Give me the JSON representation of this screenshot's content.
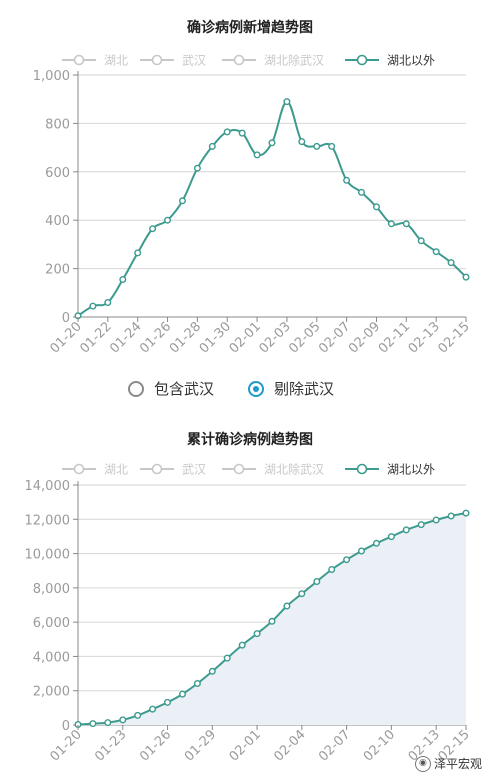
{
  "colors": {
    "active": "#3c9a8f",
    "inactive": "#c8c8c8",
    "grid": "#d6d6d6",
    "axis": "#888888",
    "tick_text": "#9b9b9b",
    "title": "#222222",
    "area": "#eaf0f5",
    "radio_accent": "#1f9ac9"
  },
  "radio": {
    "options": [
      {
        "label": "包含武汉",
        "checked": false
      },
      {
        "label": "剔除武汉",
        "checked": true
      }
    ]
  },
  "watermark": {
    "text": "泽平宏观",
    "icon": "wechat-icon"
  },
  "chart_data": [
    {
      "type": "line",
      "title": "确诊病例新增趋势图",
      "legend": [
        "湖北",
        "武汉",
        "湖北除武汉",
        "湖北以外"
      ],
      "active_series": "湖北以外",
      "legend_position": "top",
      "grid": true,
      "ylim": [
        0,
        1000
      ],
      "yticks": [
        0,
        200,
        400,
        600,
        800,
        1000
      ],
      "ytick_labels": [
        "0",
        "200",
        "400",
        "600",
        "800",
        "1,000"
      ],
      "xtick_labels": [
        "01-20",
        "01-22",
        "01-24",
        "01-26",
        "01-28",
        "01-30",
        "02-01",
        "02-03",
        "02-05",
        "02-07",
        "02-09",
        "02-11",
        "02-13",
        "02-15"
      ],
      "x": [
        "01-20",
        "01-21",
        "01-22",
        "01-23",
        "01-24",
        "01-25",
        "01-26",
        "01-27",
        "01-28",
        "01-29",
        "01-30",
        "01-31",
        "02-01",
        "02-02",
        "02-03",
        "02-04",
        "02-05",
        "02-06",
        "02-07",
        "02-08",
        "02-09",
        "02-10",
        "02-11",
        "02-12",
        "02-13",
        "02-14",
        "02-15"
      ],
      "series": [
        {
          "name": "湖北以外",
          "values": [
            5,
            45,
            60,
            155,
            265,
            365,
            400,
            480,
            615,
            705,
            765,
            760,
            670,
            720,
            890,
            725,
            705,
            705,
            565,
            515,
            455,
            385,
            385,
            315,
            270,
            225,
            165
          ]
        }
      ],
      "area": false
    },
    {
      "type": "area",
      "title": "累计确诊病例趋势图",
      "legend": [
        "湖北",
        "武汉",
        "湖北除武汉",
        "湖北以外"
      ],
      "active_series": "湖北以外",
      "legend_position": "top",
      "grid": true,
      "ylim": [
        0,
        14000
      ],
      "yticks": [
        0,
        2000,
        4000,
        6000,
        8000,
        10000,
        12000,
        14000
      ],
      "ytick_labels": [
        "0",
        "2,000",
        "4,000",
        "6,000",
        "8,000",
        "10,000",
        "12,000",
        "14,000"
      ],
      "xtick_labels": [
        "01-20",
        "01-23",
        "01-26",
        "01-29",
        "02-01",
        "02-04",
        "02-07",
        "02-10",
        "02-13",
        "02-15"
      ],
      "x": [
        "01-20",
        "01-21",
        "01-22",
        "01-23",
        "01-24",
        "01-25",
        "01-26",
        "01-27",
        "01-28",
        "01-29",
        "01-30",
        "01-31",
        "02-01",
        "02-02",
        "02-03",
        "02-04",
        "02-05",
        "02-06",
        "02-07",
        "02-08",
        "02-09",
        "02-10",
        "02-11",
        "02-12",
        "02-13",
        "02-14",
        "02-15"
      ],
      "series": [
        {
          "name": "湖北以外",
          "values": [
            30,
            80,
            140,
            300,
            560,
            930,
            1320,
            1800,
            2420,
            3130,
            3900,
            4660,
            5330,
            6050,
            6940,
            7660,
            8370,
            9070,
            9640,
            10150,
            10600,
            10990,
            11380,
            11690,
            11960,
            12190,
            12360
          ]
        }
      ],
      "area": true
    }
  ]
}
